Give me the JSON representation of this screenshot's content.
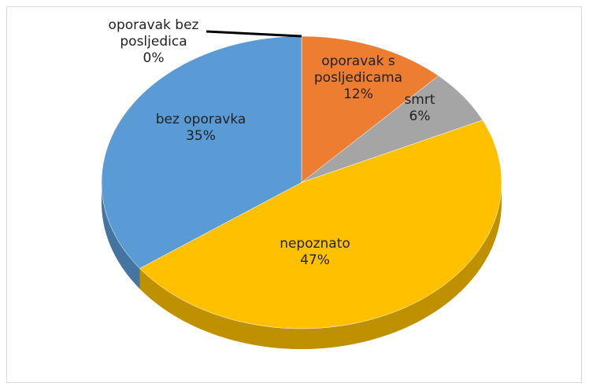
{
  "chart_data": {
    "type": "pie",
    "categories": [
      "oporavak bez posljedica",
      "oporavak s posljedicama",
      "smrt",
      "nepoznato",
      "bez oporavka"
    ],
    "values": [
      0,
      12,
      6,
      47,
      35
    ],
    "value_labels": [
      "0%",
      "12%",
      "6%",
      "47%",
      "35%"
    ],
    "colors": [
      "#4472c4",
      "#ed7d31",
      "#a5a5a5",
      "#ffc000",
      "#5b9bd5"
    ]
  }
}
